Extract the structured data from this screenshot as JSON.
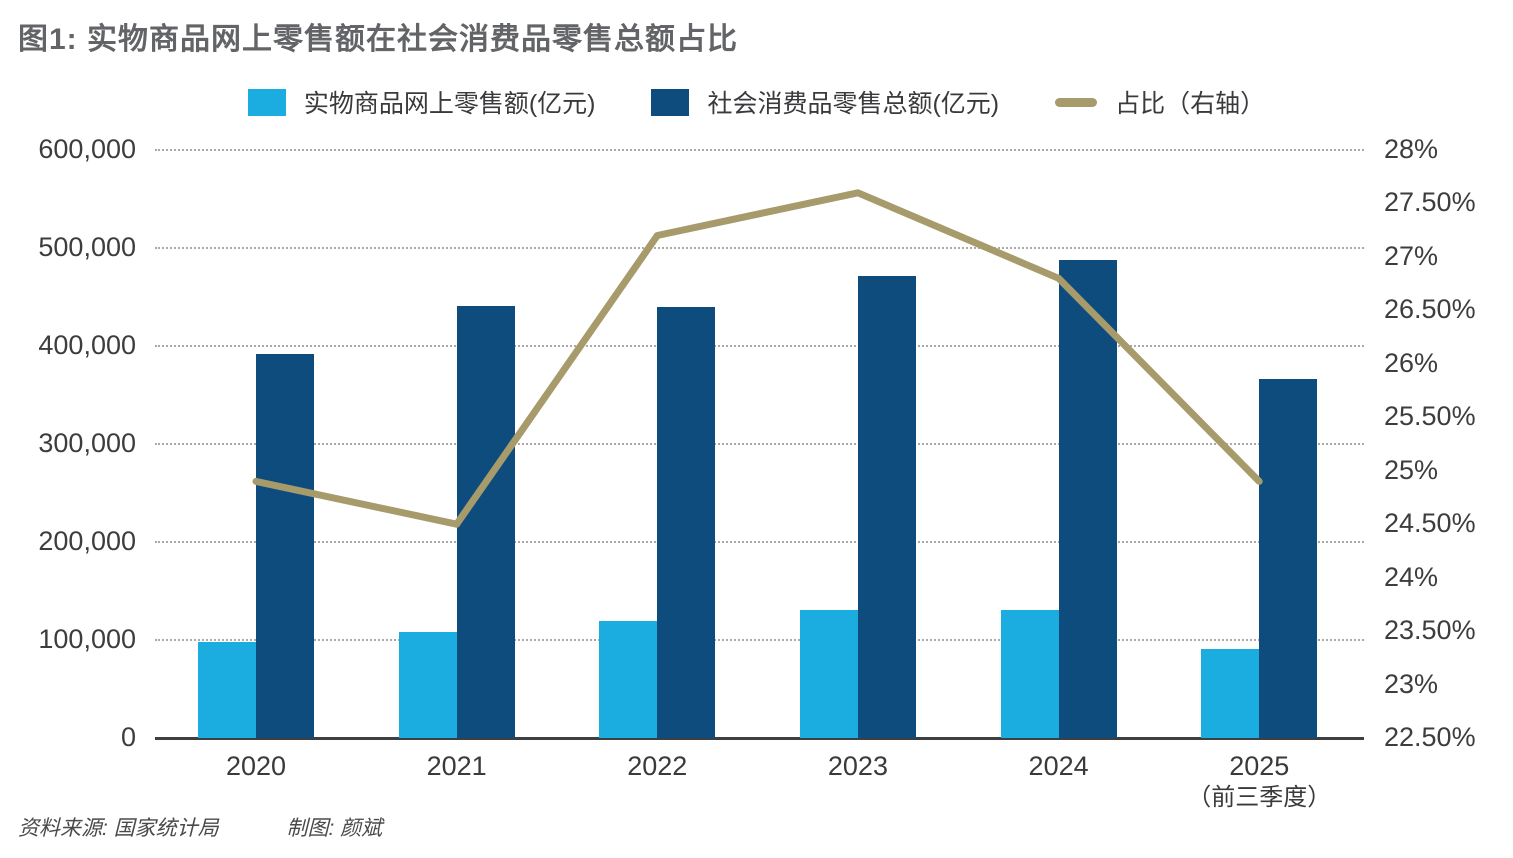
{
  "title": "图1: 实物商品网上零售额在社会消费品零售总额占比",
  "legend": {
    "items": [
      {
        "label": "实物商品网上零售额(亿元)",
        "swatch": "light-blue-square",
        "color": "#1BACE0"
      },
      {
        "label": "社会消费品零售总额(亿元)",
        "swatch": "dark-blue-square",
        "color": "#0E4C7E"
      },
      {
        "label": "占比（右轴）",
        "swatch": "gold-dash",
        "color": "#A79B6B"
      }
    ]
  },
  "footer": {
    "source": "资料来源: 国家统计局",
    "credit": "制图: 颜斌"
  },
  "colors": {
    "light_blue": "#1BACE0",
    "dark_blue": "#0E4C7E",
    "gold": "#A79B6B",
    "grid": "#A9A9A9",
    "axis_line": "#3C4043",
    "axis_text": "#3D3D3F",
    "title_text": "#636467"
  },
  "chart_data": {
    "type": "bar",
    "subtype": "grouped bars with secondary-axis line overlay",
    "categories": [
      "2020",
      "2021",
      "2022",
      "2023",
      "2024",
      "2025"
    ],
    "category_sublabels": [
      "",
      "",
      "",
      "",
      "",
      "（前三季度）"
    ],
    "series": [
      {
        "name": "实物商品网上零售额(亿元)",
        "type": "bar",
        "axis": "left",
        "color": "#1BACE0",
        "values": [
          98000,
          108000,
          119600,
          130200,
          130800,
          91000
        ]
      },
      {
        "name": "社会消费品零售总额(亿元)",
        "type": "bar",
        "axis": "left",
        "color": "#0E4C7E",
        "values": [
          392000,
          441000,
          440000,
          471500,
          488000,
          366000
        ]
      },
      {
        "name": "占比（右轴）",
        "type": "line",
        "axis": "right",
        "color": "#A79B6B",
        "values": [
          24.9,
          24.5,
          27.2,
          27.6,
          26.8,
          24.9
        ]
      }
    ],
    "left_axis": {
      "min": 0,
      "max": 600000,
      "step": 100000,
      "tick_labels": [
        "600,000",
        "500,000",
        "400,000",
        "300,000",
        "200,000",
        "100,000",
        "0"
      ]
    },
    "right_axis": {
      "min": 22.5,
      "max": 28,
      "step": 0.5,
      "tick_labels": [
        "28%",
        "27.50%",
        "27%",
        "26.50%",
        "26%",
        "25.50%",
        "25%",
        "24.50%",
        "24%",
        "23.50%",
        "23%",
        "22.50%"
      ]
    },
    "grid": "horizontal dotted",
    "legend_position": "top center"
  }
}
